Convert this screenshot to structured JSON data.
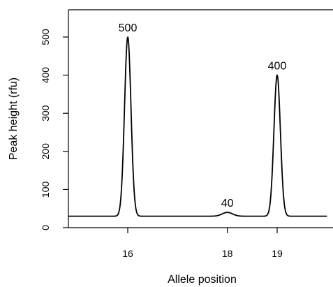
{
  "chart_data": {
    "type": "line",
    "title": "",
    "xlabel": "Allele position",
    "ylabel": "Peak height (rfu)",
    "xlim": [
      14.6,
      20.2
    ],
    "ylim": [
      0,
      570
    ],
    "x_ticks": [
      16,
      18,
      19
    ],
    "y_ticks": [
      0,
      100,
      200,
      300,
      400,
      500
    ],
    "baseline": 30,
    "peaks": [
      {
        "x": 16,
        "height": 500,
        "label": "500"
      },
      {
        "x": 18,
        "height": 40,
        "label": "40"
      },
      {
        "x": 19,
        "height": 400,
        "label": "400"
      }
    ],
    "x_range_curve": [
      14.8,
      20.0
    ],
    "grid": false,
    "box": "left-bottom-top-right"
  }
}
